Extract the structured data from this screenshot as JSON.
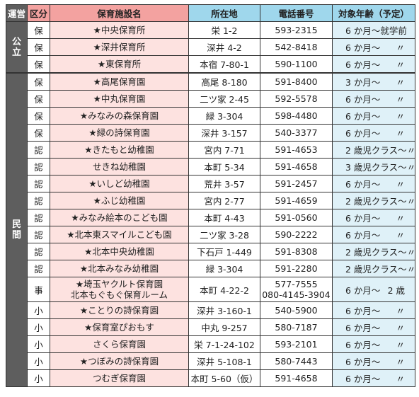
{
  "header": {
    "unei": "運営",
    "kubun": "区分",
    "name": "保育施設名",
    "address": "所在地",
    "phone": "電話番号",
    "age": "対象年齢（予定）"
  },
  "groups": {
    "public": "公立",
    "private": "民間"
  },
  "rows": [
    {
      "kubun": "保",
      "name": [
        "★中央保育所"
      ],
      "address": "栄 1-2",
      "phone": [
        "593-2315"
      ],
      "age": "6 か月～就学前",
      "ditto": ""
    },
    {
      "kubun": "保",
      "name": [
        "★深井保育所"
      ],
      "address": "深井 4-2",
      "phone": [
        "542-8418"
      ],
      "age": "6 か月～",
      "ditto": "〃"
    },
    {
      "kubun": "保",
      "name": [
        "★東保育所"
      ],
      "address": "本宿 7-80-1",
      "phone": [
        "590-1100"
      ],
      "age": "6 か月～",
      "ditto": "〃"
    },
    {
      "kubun": "保",
      "name": [
        "★高尾保育園"
      ],
      "address": "高尾 8-180",
      "phone": [
        "591-8400"
      ],
      "age": "3 か月～",
      "ditto": "〃"
    },
    {
      "kubun": "保",
      "name": [
        "★中丸保育園"
      ],
      "address": "二ツ家 2-45",
      "phone": [
        "592-5578"
      ],
      "age": "6 か月～",
      "ditto": "〃"
    },
    {
      "kubun": "保",
      "name": [
        "★みなみの森保育園"
      ],
      "address": "緑 3-304",
      "phone": [
        "598-4480"
      ],
      "age": "6 か月～",
      "ditto": "〃"
    },
    {
      "kubun": "保",
      "name": [
        "★緑の詩保育園"
      ],
      "address": "深井 3-157",
      "phone": [
        "540-3377"
      ],
      "age": "6 か月～",
      "ditto": "〃"
    },
    {
      "kubun": "認",
      "name": [
        "★きたもと幼稚園"
      ],
      "address": "宮内 7-71",
      "phone": [
        "591-4653"
      ],
      "age": "2 歳児クラス～",
      "ditto": "〃"
    },
    {
      "kubun": "認",
      "name": [
        "せきね幼稚園"
      ],
      "address": "本町 5-34",
      "phone": [
        "591-4658"
      ],
      "age": "3 歳児クラス～",
      "ditto": "〃"
    },
    {
      "kubun": "認",
      "name": [
        "★いしど幼稚園"
      ],
      "address": "荒井 3-57",
      "phone": [
        "591-2457"
      ],
      "age": "6 か月～",
      "ditto": "〃"
    },
    {
      "kubun": "認",
      "name": [
        "★ふじ幼稚園"
      ],
      "address": "宮内 2-77",
      "phone": [
        "591-4659"
      ],
      "age": "2 歳児クラス～",
      "ditto": "〃"
    },
    {
      "kubun": "認",
      "name": [
        "★みなみ絵本のこども園"
      ],
      "address": "本町 4-43",
      "phone": [
        "591-0560"
      ],
      "age": "6 か月～",
      "ditto": "〃"
    },
    {
      "kubun": "認",
      "name": [
        "★北本東スマイルこども園"
      ],
      "address": "二ツ家 3-28",
      "phone": [
        "590-2222"
      ],
      "age": "6 か月～",
      "ditto": "〃"
    },
    {
      "kubun": "認",
      "name": [
        "★北本中央幼稚園"
      ],
      "address": "下石戸 1-449",
      "phone": [
        "591-8308"
      ],
      "age": "2 歳児クラス～",
      "ditto": "〃"
    },
    {
      "kubun": "認",
      "name": [
        "★北本みなみ幼稚園"
      ],
      "address": "緑 3-304",
      "phone": [
        "591-2280"
      ],
      "age": "2 歳児クラス～",
      "ditto": "〃"
    },
    {
      "kubun": "事",
      "name": [
        "★埼玉ヤクルト保育園",
        "北本もぐもぐ保育ルーム"
      ],
      "address": "本町 4-22-2",
      "phone": [
        "577-7555",
        "080-4145-3904"
      ],
      "age": "6 か月～",
      "ditto": "2 歳"
    },
    {
      "kubun": "小",
      "name": [
        "★ことりの詩保育園"
      ],
      "address": "深井 3-160-1",
      "phone": [
        "540-5900"
      ],
      "age": "6 か月～",
      "ditto": "〃"
    },
    {
      "kubun": "小",
      "name": [
        "★保育室ぴおもす"
      ],
      "address": "中丸 9-257",
      "phone": [
        "580-7187"
      ],
      "age": "6 か月～",
      "ditto": "〃"
    },
    {
      "kubun": "小",
      "name": [
        "さくら保育園"
      ],
      "address": "栄 7-1-24-102",
      "phone": [
        "593-2101"
      ],
      "age": "6 か月～",
      "ditto": "〃"
    },
    {
      "kubun": "小",
      "name": [
        "★つぼみの詩保育園"
      ],
      "address": "深井 5-108-1",
      "phone": [
        "580-7443"
      ],
      "age": "6 か月～",
      "ditto": "〃"
    },
    {
      "kubun": "小",
      "name": [
        "つむぎ保育園"
      ],
      "address": "本町 5-60（仮）",
      "phone": [
        "591-4658"
      ],
      "age": "6 か月～",
      "ditto": "〃"
    }
  ]
}
